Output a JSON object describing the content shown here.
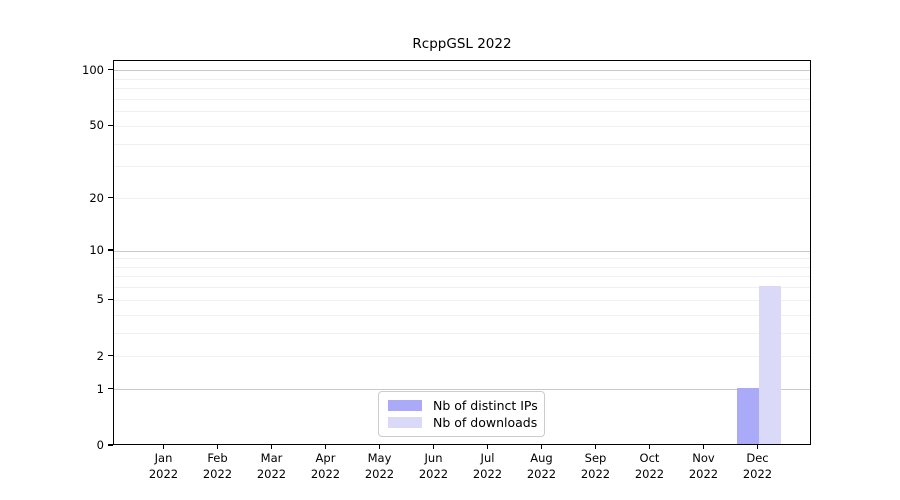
{
  "chart_data": {
    "type": "bar",
    "title": "RcppGSL 2022",
    "categories": [
      "Jan 2022",
      "Feb 2022",
      "Mar 2022",
      "Apr 2022",
      "May 2022",
      "Jun 2022",
      "Jul 2022",
      "Aug 2022",
      "Sep 2022",
      "Oct 2022",
      "Nov 2022",
      "Dec 2022"
    ],
    "series": [
      {
        "name": "Nb of distinct IPs",
        "color": "#aaaaf8",
        "values": [
          0,
          0,
          0,
          0,
          0,
          0,
          0,
          0,
          0,
          0,
          0,
          1
        ]
      },
      {
        "name": "Nb of downloads",
        "color": "#dadaf8",
        "values": [
          0,
          0,
          0,
          0,
          0,
          0,
          0,
          0,
          0,
          0,
          0,
          6
        ]
      }
    ],
    "y_axis": {
      "scale": "log10(1+y)",
      "tick_values": [
        0,
        1,
        2,
        5,
        10,
        20,
        50,
        100
      ],
      "ylim": [
        0,
        113
      ]
    },
    "grid": {
      "major_values": [
        1,
        10,
        100
      ],
      "minor_values": [
        2,
        3,
        4,
        5,
        6,
        7,
        8,
        9,
        20,
        30,
        40,
        50,
        60,
        70,
        80,
        90
      ],
      "major_color": "#c9c9c9",
      "minor_color": "#f0f0f0"
    },
    "legend_position": "bottom-center"
  }
}
